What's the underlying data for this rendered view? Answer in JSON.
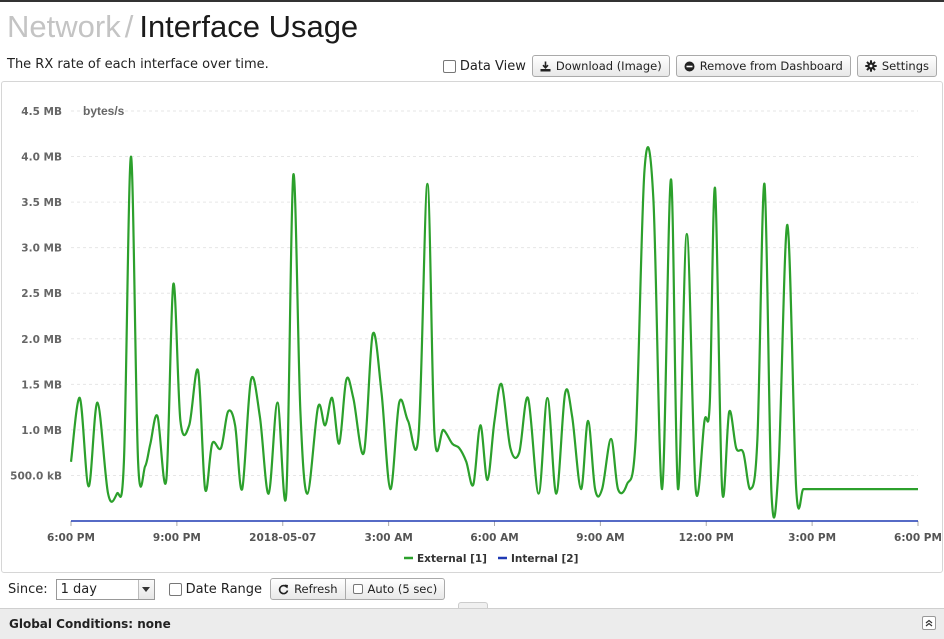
{
  "breadcrumb": {
    "section": "Network",
    "separator": "/",
    "page": "Interface Usage"
  },
  "description": "The RX rate of each interface over time.",
  "toolbar": {
    "data_view_label": "Data View",
    "download_label": "Download (Image)",
    "remove_label": "Remove from Dashboard",
    "settings_label": "Settings"
  },
  "footer": {
    "since_label": "Since:",
    "since_value": "1 day",
    "date_range_label": "Date Range",
    "refresh_label": "Refresh",
    "auto_label": "Auto (5 sec)"
  },
  "global_conditions": "Global Conditions: none",
  "colors": {
    "external": "#2ca02c",
    "internal": "#1f3ab4",
    "grid": "#e6e6e6"
  },
  "chart_data": {
    "type": "line",
    "ylabel": "bytes/s",
    "y_ticks": [
      {
        "value": 500000,
        "label": "500.0 kB"
      },
      {
        "value": 1000000,
        "label": "1.0 MB"
      },
      {
        "value": 1500000,
        "label": "1.5 MB"
      },
      {
        "value": 2000000,
        "label": "2.0 MB"
      },
      {
        "value": 2500000,
        "label": "2.5 MB"
      },
      {
        "value": 3000000,
        "label": "3.0 MB"
      },
      {
        "value": 3500000,
        "label": "3.5 MB"
      },
      {
        "value": 4000000,
        "label": "4.0 MB"
      },
      {
        "value": 4500000,
        "label": "4.5 MB"
      }
    ],
    "ylim": [
      0,
      4500000
    ],
    "xlim": [
      0,
      24
    ],
    "x_ticks": [
      {
        "value": 0,
        "label": "6:00 PM"
      },
      {
        "value": 3,
        "label": "9:00 PM"
      },
      {
        "value": 6,
        "label": "2018-05-07"
      },
      {
        "value": 9,
        "label": "3:00 AM"
      },
      {
        "value": 12,
        "label": "6:00 AM"
      },
      {
        "value": 15,
        "label": "9:00 AM"
      },
      {
        "value": 18,
        "label": "12:00 PM"
      },
      {
        "value": 21,
        "label": "3:00 PM"
      },
      {
        "value": 24,
        "label": "6:00 PM"
      }
    ],
    "legend": {
      "position": "bottom-center"
    },
    "series": [
      {
        "name": "External [1]",
        "color": "#2ca02c",
        "x": [
          0,
          0.25,
          0.5,
          0.75,
          1.05,
          1.3,
          1.5,
          1.7,
          1.9,
          2.1,
          2.25,
          2.45,
          2.7,
          2.9,
          3.1,
          3.35,
          3.6,
          3.8,
          4.0,
          4.25,
          4.45,
          4.65,
          4.85,
          5.1,
          5.35,
          5.6,
          5.85,
          6.1,
          6.3,
          6.5,
          6.7,
          7.0,
          7.2,
          7.4,
          7.6,
          7.8,
          8.0,
          8.3,
          8.55,
          8.8,
          9.05,
          9.3,
          9.55,
          9.85,
          10.1,
          10.3,
          10.55,
          10.8,
          11.0,
          11.2,
          11.4,
          11.6,
          11.8,
          12.0,
          12.2,
          12.45,
          12.7,
          12.95,
          13.25,
          13.5,
          13.75,
          14.0,
          14.2,
          14.45,
          14.65,
          14.85,
          15.05,
          15.3,
          15.5,
          15.75,
          16.0,
          16.25,
          16.5,
          16.75,
          17.0,
          17.2,
          17.45,
          17.7,
          17.95,
          18.1,
          18.25,
          18.45,
          18.65,
          18.85,
          19.05,
          19.25,
          19.45,
          19.65,
          19.85,
          20.05,
          20.3,
          20.55,
          20.75,
          20.95,
          21.2,
          21.45,
          21.65,
          21.85,
          22.1,
          22.3,
          22.55,
          22.75,
          22.95,
          23.15,
          23.35,
          23.6,
          23.85,
          24.0
        ],
        "values": [
          650000,
          1350000,
          380000,
          1300000,
          300000,
          300000,
          650000,
          4000000,
          650000,
          600000,
          850000,
          1150000,
          450000,
          2600000,
          1100000,
          1050000,
          1650000,
          350000,
          850000,
          800000,
          1200000,
          1050000,
          350000,
          1550000,
          1150000,
          300000,
          1300000,
          300000,
          3800000,
          1200000,
          300000,
          1250000,
          1050000,
          1350000,
          850000,
          1550000,
          1350000,
          750000,
          2050000,
          1400000,
          350000,
          1300000,
          1100000,
          950000,
          3700000,
          950000,
          1000000,
          850000,
          800000,
          650000,
          400000,
          1050000,
          450000,
          1100000,
          1500000,
          800000,
          750000,
          1350000,
          300000,
          1350000,
          300000,
          1400000,
          1150000,
          350000,
          1100000,
          350000,
          350000,
          900000,
          350000,
          400000,
          900000,
          3850000,
          3550000,
          350000,
          3750000,
          350000,
          3150000,
          350000,
          1100000,
          1300000,
          3650000,
          350000,
          1200000,
          800000,
          750000,
          350000,
          900000,
          3700000,
          300000,
          600000,
          3250000,
          350000,
          350000,
          350000,
          350000,
          350000,
          350000,
          350000,
          350000,
          350000,
          350000,
          350000,
          350000,
          350000,
          350000,
          350000,
          350000,
          350000
        ]
      },
      {
        "name": "Internal [2]",
        "color": "#1f3ab4",
        "x": [
          0,
          24
        ],
        "values": [
          0,
          0
        ]
      }
    ]
  }
}
